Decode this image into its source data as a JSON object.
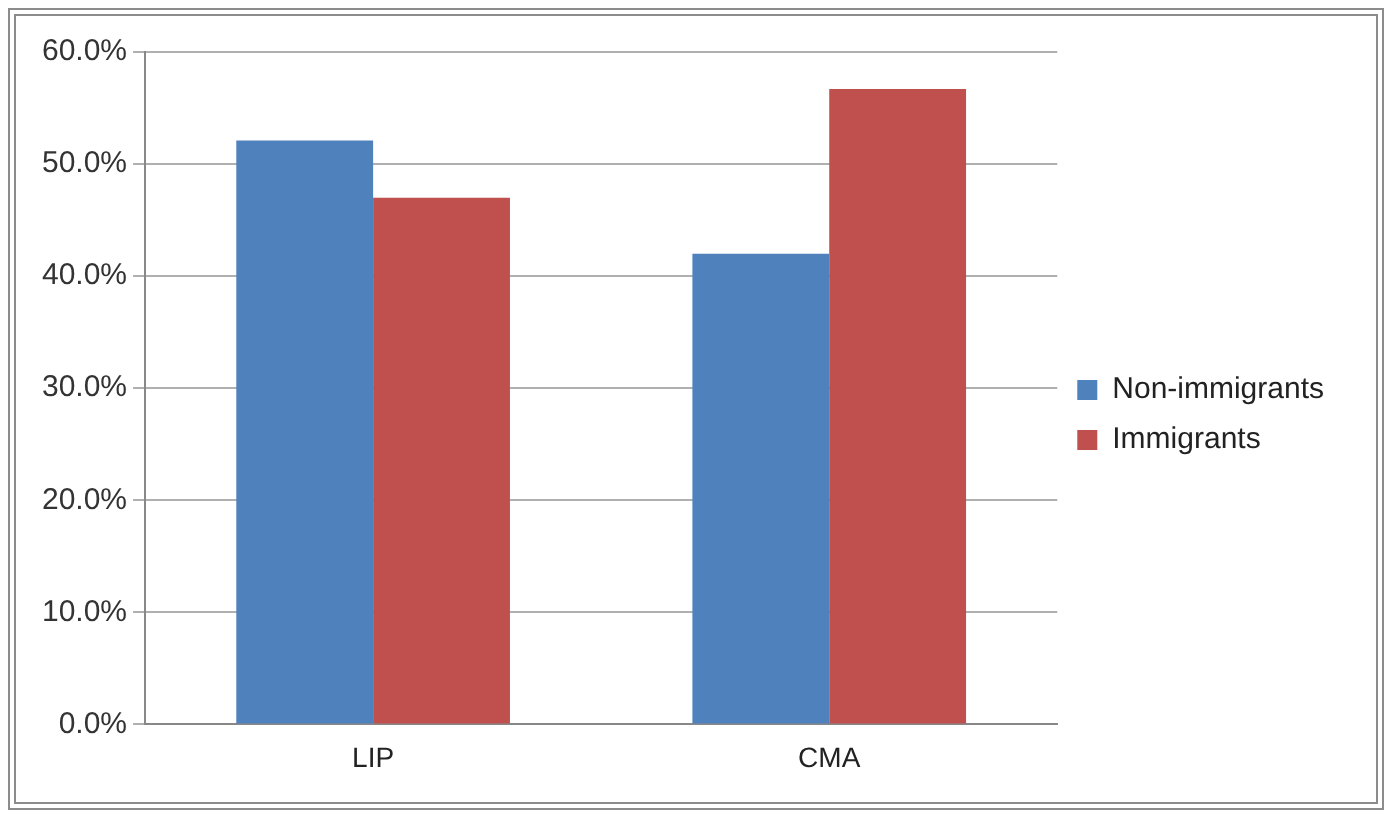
{
  "chart_data": {
    "type": "bar",
    "categories": [
      "LIP",
      "CMA"
    ],
    "series": [
      {
        "name": "Non-immigrants",
        "color": "#4f81bd",
        "values": [
          52.1,
          42.0
        ]
      },
      {
        "name": "Immigrants",
        "color": "#c0504d",
        "values": [
          47.0,
          56.7
        ]
      }
    ],
    "ylim": [
      0,
      60
    ],
    "yticks": [
      {
        "value": 0,
        "label": "0.0%"
      },
      {
        "value": 10,
        "label": "10.0%"
      },
      {
        "value": 20,
        "label": "20.0%"
      },
      {
        "value": 30,
        "label": "30.0%"
      },
      {
        "value": 40,
        "label": "40.0%"
      },
      {
        "value": 50,
        "label": "50.0%"
      },
      {
        "value": 60,
        "label": "60.0%"
      }
    ],
    "grid": "y",
    "legend": "right"
  }
}
